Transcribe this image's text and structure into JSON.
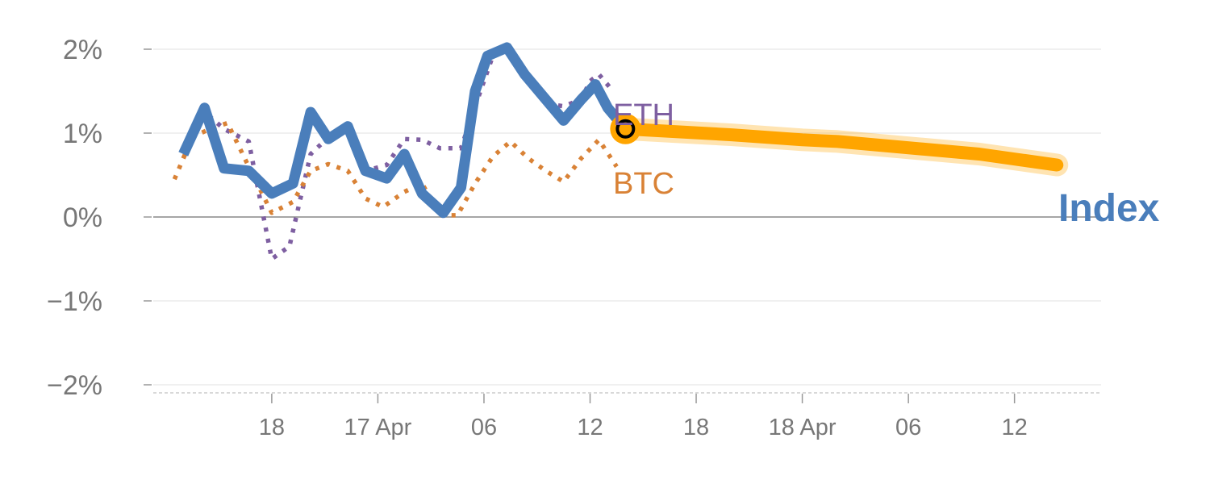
{
  "chart_data": {
    "type": "line",
    "y_tick_labels": [
      "2%",
      "1%",
      "0%",
      "−1%",
      "−2%"
    ],
    "y_ticks": [
      2,
      1,
      0,
      -1,
      -2
    ],
    "ylim": [
      -2.1,
      2.1
    ],
    "x_tick_labels": [
      "18",
      "17 Apr",
      "06",
      "12",
      "18",
      "18 Apr",
      "06",
      "12"
    ],
    "x_ticks": [
      18,
      24,
      30,
      36,
      42,
      48,
      54,
      60
    ],
    "xlim": [
      11.3,
      63.3
    ],
    "series": [
      {
        "name": "Index",
        "style": "solid",
        "color": "#4a7ebb",
        "x": [
          13,
          14.2,
          15.3,
          16.7,
          18,
          19.2,
          20.2,
          21.2,
          22.3,
          23.3,
          24.5,
          25.5,
          26.5,
          27.7,
          28.7,
          29.5,
          30.2,
          31.3,
          32.3,
          33.5,
          34.5,
          35.5,
          36.3,
          37,
          38
        ],
        "values": [
          0.75,
          1.3,
          0.58,
          0.55,
          0.28,
          0.4,
          1.25,
          0.93,
          1.08,
          0.55,
          0.46,
          0.75,
          0.28,
          0.05,
          0.35,
          1.5,
          1.92,
          2.02,
          1.7,
          1.4,
          1.15,
          1.4,
          1.58,
          1.3,
          1.05
        ]
      },
      {
        "name": "ETH",
        "style": "dotted",
        "color": "#7e5fa1",
        "x": [
          13,
          14.2,
          15.3,
          16.7,
          18,
          19,
          20.2,
          21.2,
          22.3,
          23.3,
          24.5,
          25.5,
          26.5,
          27.5,
          28.7,
          29.8,
          30.5,
          31.3,
          32.3,
          33.5,
          34.5,
          35.5,
          36,
          36.5,
          37.3
        ],
        "values": [
          0.7,
          1.25,
          1.05,
          0.9,
          -0.5,
          -0.35,
          0.75,
          0.95,
          1.05,
          0.55,
          0.62,
          0.93,
          0.92,
          0.82,
          0.82,
          1.5,
          1.92,
          1.98,
          1.7,
          1.35,
          1.32,
          1.4,
          1.62,
          1.7,
          1.5
        ]
      },
      {
        "name": "BTC",
        "style": "dotted",
        "color": "#d98236",
        "x": [
          12.5,
          13.5,
          14.5,
          15.5,
          16.7,
          18,
          19.2,
          20.2,
          21.2,
          22.3,
          23.3,
          24.3,
          25.5,
          26.5,
          27.5,
          28.5,
          29.5,
          30.5,
          31.5,
          32.5,
          33.5,
          34.5,
          35.5,
          36.5,
          37.5
        ],
        "values": [
          0.45,
          0.95,
          1.05,
          1.12,
          0.6,
          0.05,
          0.18,
          0.55,
          0.63,
          0.55,
          0.22,
          0.12,
          0.3,
          0.4,
          0.02,
          0.02,
          0.4,
          0.72,
          0.9,
          0.7,
          0.55,
          0.42,
          0.7,
          0.92,
          0.6
        ]
      },
      {
        "name": "",
        "style": "forecast",
        "color": "#ffa500",
        "x": [
          38,
          44,
          48,
          50,
          58,
          62.4
        ],
        "values": [
          1.05,
          0.98,
          0.92,
          0.9,
          0.75,
          0.62
        ]
      }
    ],
    "labels": {
      "index": "Index",
      "eth": "ETH",
      "btc": "BTC"
    },
    "colors": {
      "index": "#4a7ebb",
      "eth": "#7e5fa1",
      "btc": "#d98236",
      "forecast": "#ffa500",
      "grid": "#e8e8e8",
      "zero_line": "#888888",
      "tick_text": "#777777"
    },
    "grid": true,
    "legend": "inline"
  }
}
